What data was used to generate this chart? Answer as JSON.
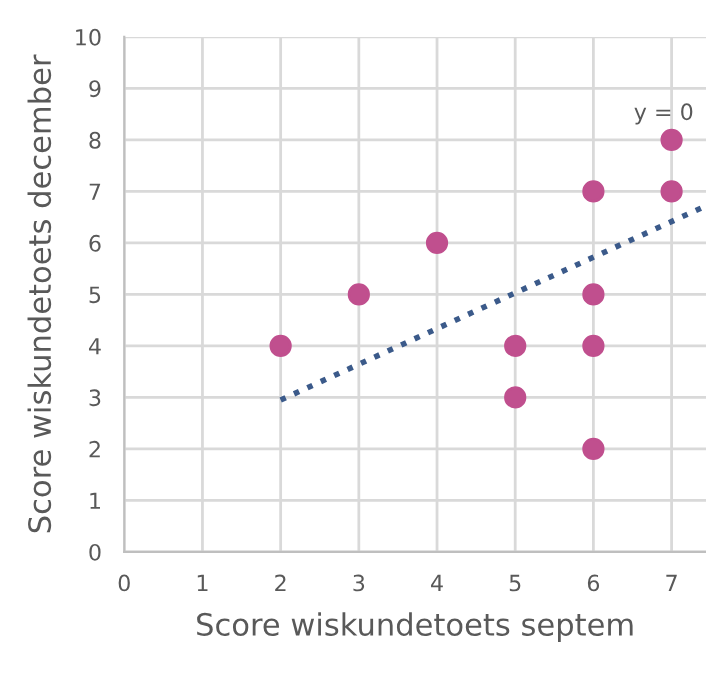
{
  "chart_data": {
    "type": "scatter",
    "xlabel": "Score wiskundetoets septem",
    "ylabel": "Score wiskundetoets december",
    "xlim": [
      0,
      7.44
    ],
    "ylim": [
      0,
      10
    ],
    "xticks": [
      0,
      1,
      2,
      3,
      4,
      5,
      6,
      7
    ],
    "yticks": [
      0,
      1,
      2,
      3,
      4,
      5,
      6,
      7,
      8,
      9,
      10
    ],
    "grid": true,
    "series": [
      {
        "color": "#c04f8e",
        "marker": "circle",
        "x": [
          2,
          3,
          4,
          5,
          5,
          6,
          6,
          6,
          6,
          7,
          7
        ],
        "values": [
          4,
          5,
          6,
          4,
          3,
          7,
          5,
          4,
          2,
          8,
          7
        ]
      },
      {
        "type": "line",
        "color": "#3b5a8a",
        "line_style": "dotted",
        "marker": "none",
        "x": [
          2,
          7.44
        ],
        "values": [
          2.95,
          6.72
        ]
      }
    ],
    "annotations": [
      {
        "text": "y = 0",
        "x": 6.9,
        "y": 8.3
      }
    ]
  }
}
